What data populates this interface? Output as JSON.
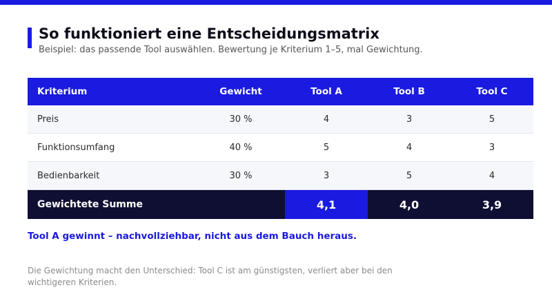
{
  "header": {
    "title": "So funktioniert eine Entscheidungsmatrix",
    "subtitle": "Beispiel: das passende Tool auswählen. Bewertung je Kriterium 1–5, mal Gewichtung."
  },
  "table": {
    "columns": [
      "Kriterium",
      "Gewicht",
      "Tool A",
      "Tool B",
      "Tool C"
    ],
    "rows": [
      {
        "criterion": "Preis",
        "weight": "30 %",
        "a": "4",
        "b": "3",
        "c": "5"
      },
      {
        "criterion": "Funktionsumfang",
        "weight": "40 %",
        "a": "5",
        "b": "4",
        "c": "3"
      },
      {
        "criterion": "Bedienbarkeit",
        "weight": "30 %",
        "a": "3",
        "b": "5",
        "c": "4"
      }
    ],
    "footer": {
      "label": "Gewichtete Summe",
      "a": "4,1",
      "b": "4,0",
      "c": "3,9",
      "winner": "Tool A"
    }
  },
  "verdict": "Tool A gewinnt – nachvollziehbar, nicht aus dem Bauch heraus.",
  "footnote": "Die Gewichtung macht den Unterschied: Tool C ist am günstigsten, verliert aber bei den wichtigeren Kriterien.",
  "colors": {
    "accent": "#1a1ae0",
    "footer_dark": "#0f0f33",
    "row_alt": "#f6f7fb"
  }
}
